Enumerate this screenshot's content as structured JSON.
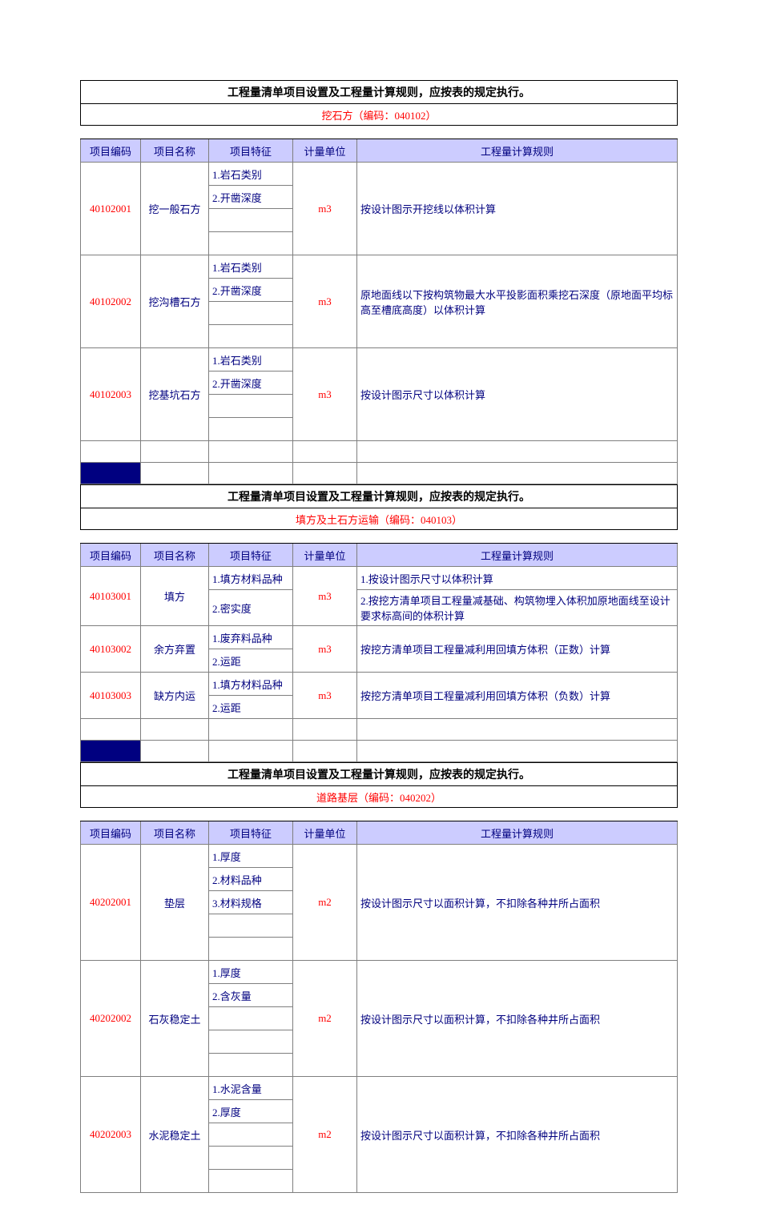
{
  "colors": {
    "header_bg": "#ccccff",
    "text_blue": "#00007f",
    "text_red": "#ff0000",
    "dark_bg": "#000080",
    "border": "#7f7f7f"
  },
  "common": {
    "top_title": "工程量清单项目设置及工程量计算规则，应按表的规定执行。",
    "headers": [
      "项目编码",
      "项目名称",
      "项目特征",
      "计量单位",
      "工程量计算规则"
    ]
  },
  "sections": [
    {
      "subtitle": "挖石方（编码：040102）",
      "rows": [
        {
          "code": "40102001",
          "name": "挖一般石方",
          "features": [
            "1.岩石类别",
            "2.开凿深度",
            "",
            ""
          ],
          "unit": "m3",
          "rule": "按设计图示开挖线以体积计算"
        },
        {
          "code": "40102002",
          "name": "挖沟槽石方",
          "features": [
            "1.岩石类别",
            "2.开凿深度",
            "",
            ""
          ],
          "unit": "m3",
          "rule": "原地面线以下按构筑物最大水平投影面积乘挖石深度（原地面平均标高至槽底高度）以体积计算"
        },
        {
          "code": "40102003",
          "name": "挖基坑石方",
          "features": [
            "1.岩石类别",
            "2.开凿深度",
            "",
            ""
          ],
          "unit": "m3",
          "rule": "按设计图示尺寸以体积计算"
        }
      ]
    },
    {
      "subtitle": "填方及土石方运输（编码：040103）",
      "rows": [
        {
          "code": "40103001",
          "name": "填方",
          "features": [
            "1.填方材料品种",
            "2.密实度"
          ],
          "unit": "m3",
          "rules": [
            "1.按设计图示尺寸以体积计算",
            "2.按挖方清单项目工程量减基础、构筑物埋入体积加原地面线至设计要求标高间的体积计算"
          ]
        },
        {
          "code": "40103002",
          "name": "余方弃置",
          "features": [
            "1.废弃料品种",
            "2.运距"
          ],
          "unit": "m3",
          "rule": "按挖方清单项目工程量减利用回填方体积（正数）计算"
        },
        {
          "code": "40103003",
          "name": "缺方内运",
          "features": [
            "1.填方材料品种",
            "2.运距"
          ],
          "unit": "m3",
          "rule": "按挖方清单项目工程量减利用回填方体积（负数）计算"
        }
      ]
    },
    {
      "subtitle": "道路基层（编码：040202）",
      "rows": [
        {
          "code": "40202001",
          "name": "垫层",
          "features": [
            "1.厚度",
            "2.材料品种",
            "3.材料规格",
            "",
            ""
          ],
          "unit": "m2",
          "rule": "按设计图示尺寸以面积计算，不扣除各种井所占面积"
        },
        {
          "code": "40202002",
          "name": "石灰稳定土",
          "features": [
            "1.厚度",
            "2.含灰量",
            "",
            "",
            ""
          ],
          "unit": "m2",
          "rule": "按设计图示尺寸以面积计算，不扣除各种井所占面积"
        },
        {
          "code": "40202003",
          "name": "水泥稳定土",
          "features": [
            "1.水泥含量",
            "2.厚度",
            "",
            "",
            ""
          ],
          "unit": "m2",
          "rule": "按设计图示尺寸以面积计算，不扣除各种井所占面积"
        }
      ]
    }
  ]
}
